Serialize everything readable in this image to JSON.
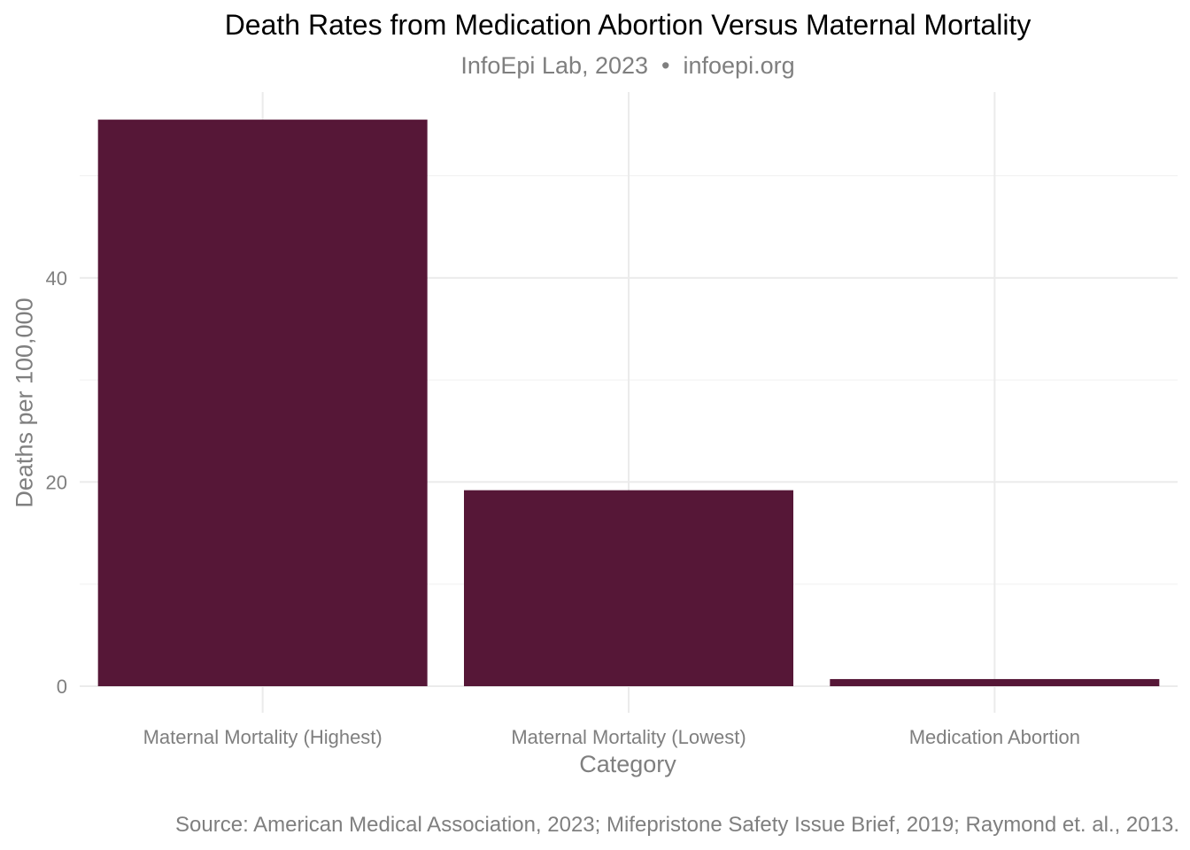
{
  "chart_data": {
    "type": "bar",
    "title": "Death Rates from Medication Abortion Versus Maternal Mortality",
    "subtitle": "InfoEpi Lab, 2023  •  infoepi.org",
    "caption": "Source: American Medical Association, 2023; Mifepristone Safety Issue Brief, 2019; Raymond et. al., 2013.",
    "xlabel": "Category",
    "ylabel": "Deaths per 100,000",
    "categories": [
      "Maternal Mortality (Highest)",
      "Maternal Mortality (Lowest)",
      "Medication Abortion"
    ],
    "values": [
      55.5,
      19.2,
      0.7
    ],
    "yticks": [
      0,
      20,
      40
    ],
    "ylim": [
      -2.6,
      58.2
    ],
    "grid": true,
    "bar_color": "#561737"
  }
}
